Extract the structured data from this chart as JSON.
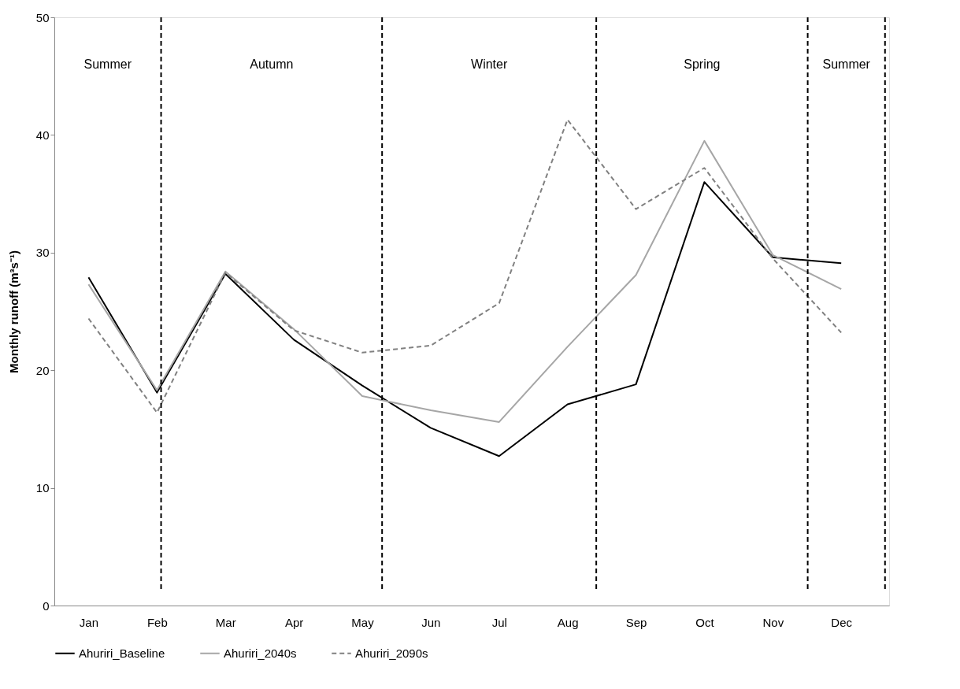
{
  "chart_data": {
    "type": "line",
    "ylabel": "Monthly runoff (m³s⁻¹)",
    "categories": [
      "Jan",
      "Feb",
      "Mar",
      "Apr",
      "May",
      "Jun",
      "Jul",
      "Aug",
      "Sep",
      "Oct",
      "Nov",
      "Dec"
    ],
    "ylim": [
      0,
      50
    ],
    "yticks": [
      0,
      10,
      20,
      30,
      40,
      50
    ],
    "legend": "bottom",
    "marker": "none",
    "series": [
      {
        "name": "Ahuriri_Baseline",
        "color": "#000000",
        "line_style": "solid",
        "values": [
          27.9,
          18.1,
          28.2,
          22.6,
          18.7,
          15.1,
          12.7,
          17.1,
          18.8,
          36.0,
          29.6,
          29.1
        ]
      },
      {
        "name": "Ahuriri_2040s",
        "color": "#a6a6a6",
        "line_style": "solid",
        "values": [
          27.3,
          18.3,
          28.4,
          23.5,
          17.8,
          16.6,
          15.6,
          22.0,
          28.1,
          39.5,
          29.8,
          26.9
        ]
      },
      {
        "name": "Ahuriri_2090s",
        "color": "#808080",
        "line_style": "dashed",
        "values": [
          24.4,
          16.4,
          28.3,
          23.4,
          21.5,
          22.1,
          25.7,
          41.3,
          33.7,
          37.2,
          29.5,
          23.2
        ]
      }
    ],
    "annotations": [
      "Summer",
      "Autumn",
      "Winter",
      "Spring",
      "Summer"
    ]
  }
}
